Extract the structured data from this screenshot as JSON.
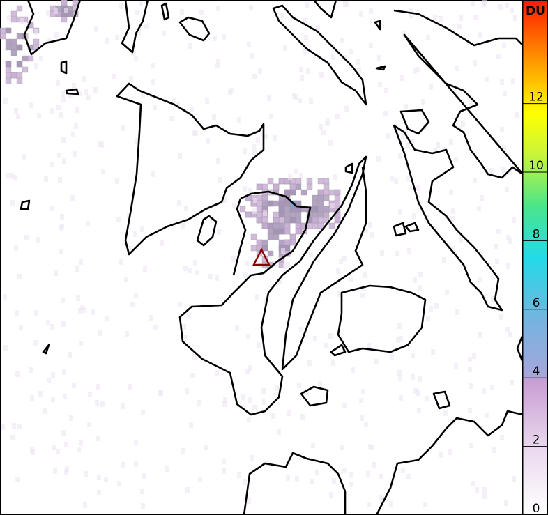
{
  "colorbar": {
    "title": "DU",
    "lim": [
      0,
      15
    ],
    "ticks": [
      0,
      2,
      4,
      6,
      8,
      10,
      12
    ]
  }
}
